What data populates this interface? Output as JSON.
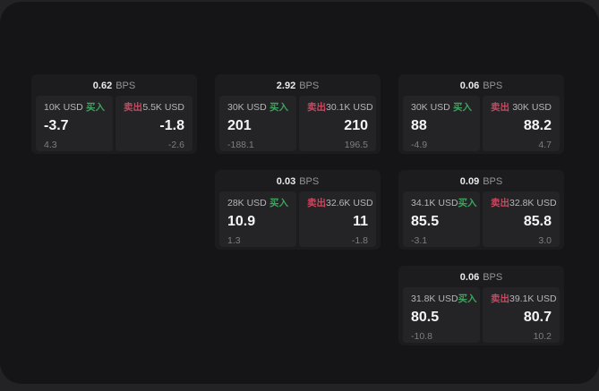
{
  "labels": {
    "bps": "BPS",
    "buy": "买入",
    "sell": "卖出"
  },
  "colors": {
    "outer_bg": "#232325",
    "surface": "#151517",
    "card": "#1c1c1e",
    "panel": "#242427",
    "buy_green": "#3da35c",
    "sell_red": "#c9485f"
  },
  "cards": [
    {
      "bps": "0.62",
      "buy": {
        "amount": "10K USD",
        "price": "-3.7",
        "delta": "4.3"
      },
      "sell": {
        "amount": "5.5K USD",
        "price": "-1.8",
        "delta": "-2.6"
      }
    },
    {
      "bps": "2.92",
      "buy": {
        "amount": "30K USD",
        "price": "201",
        "delta": "-188.1"
      },
      "sell": {
        "amount": "30.1K USD",
        "price": "210",
        "delta": "196.5"
      }
    },
    {
      "bps": "0.06",
      "buy": {
        "amount": "30K USD",
        "price": "88",
        "delta": "-4.9"
      },
      "sell": {
        "amount": "30K USD",
        "price": "88.2",
        "delta": "4.7"
      }
    },
    {
      "bps": "0.03",
      "buy": {
        "amount": "28K USD",
        "price": "10.9",
        "delta": "1.3"
      },
      "sell": {
        "amount": "32.6K USD",
        "price": "11",
        "delta": "-1.8"
      }
    },
    {
      "bps": "0.09",
      "buy": {
        "amount": "34.1K USD",
        "price": "85.5",
        "delta": "-3.1"
      },
      "sell": {
        "amount": "32.8K USD",
        "price": "85.8",
        "delta": "3.0"
      }
    },
    {
      "bps": "0.06",
      "buy": {
        "amount": "31.8K USD",
        "price": "80.5",
        "delta": "-10.8"
      },
      "sell": {
        "amount": "39.1K USD",
        "price": "80.7",
        "delta": "10.2"
      }
    }
  ]
}
